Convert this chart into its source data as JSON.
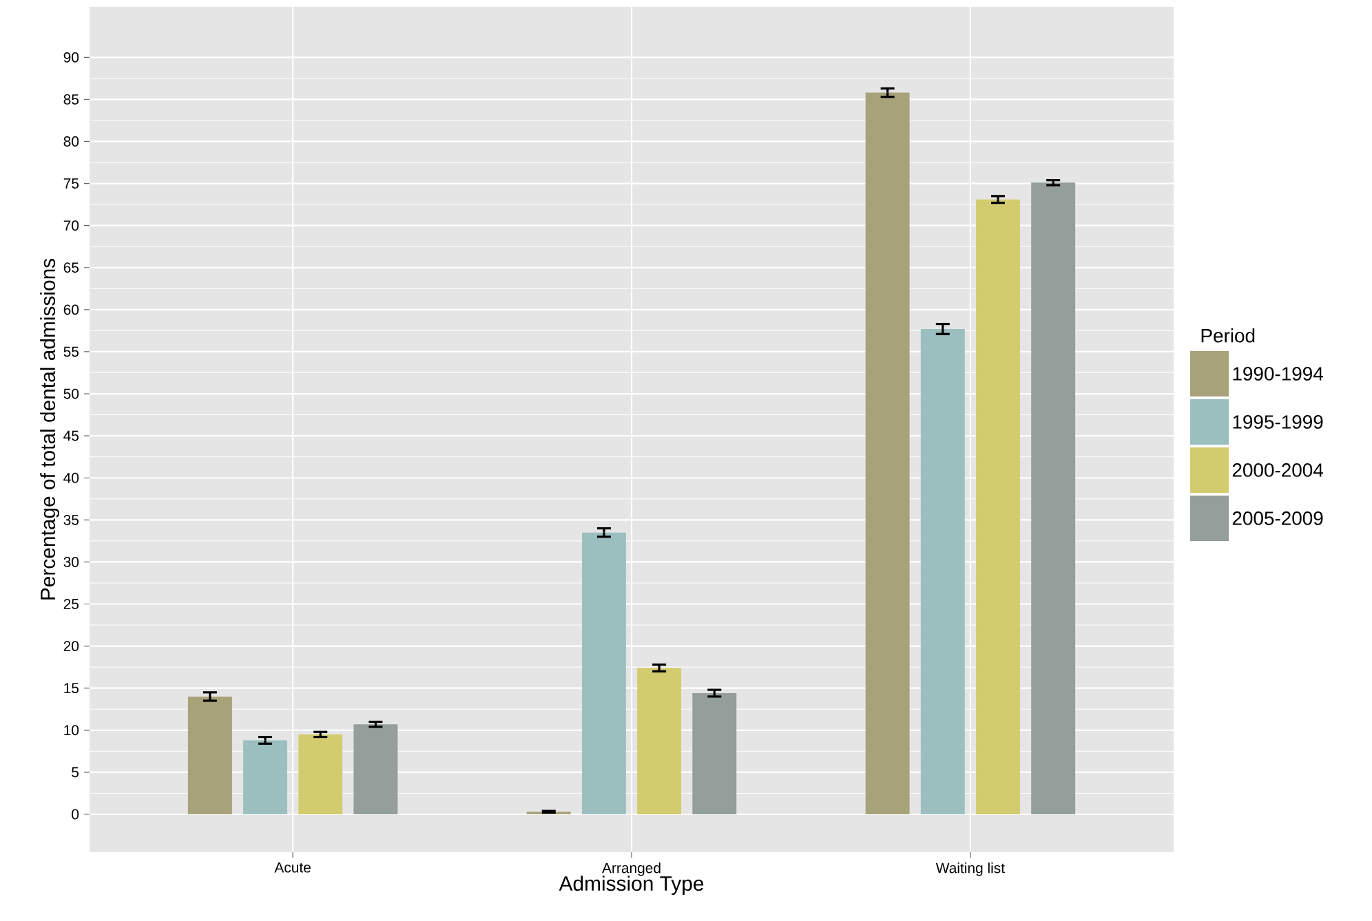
{
  "chart_data": {
    "type": "bar",
    "xlabel": "Admission Type",
    "ylabel": "Percentage of total dental admissions",
    "legend_title": "Period",
    "categories": [
      "Acute",
      "Arranged",
      "Waiting list"
    ],
    "series": [
      {
        "name": "1990-1994",
        "color": "#a8a27a",
        "values": [
          14.0,
          0.3,
          85.8
        ],
        "errors": [
          0.5,
          0.1,
          0.5
        ]
      },
      {
        "name": "1995-1999",
        "color": "#9bbfbf",
        "values": [
          8.8,
          33.5,
          57.7
        ],
        "errors": [
          0.4,
          0.5,
          0.6
        ]
      },
      {
        "name": "2000-2004",
        "color": "#d3cc6e",
        "values": [
          9.5,
          17.4,
          73.1
        ],
        "errors": [
          0.3,
          0.4,
          0.4
        ]
      },
      {
        "name": "2005-2009",
        "color": "#949e9a",
        "values": [
          10.7,
          14.4,
          75.1
        ],
        "errors": [
          0.3,
          0.4,
          0.3
        ]
      }
    ],
    "ylim": [
      -4.5,
      96
    ],
    "yticks": [
      0,
      5,
      10,
      15,
      20,
      25,
      30,
      35,
      40,
      45,
      50,
      55,
      60,
      65,
      70,
      75,
      80,
      85,
      90
    ],
    "grid": true,
    "legend": "right"
  }
}
